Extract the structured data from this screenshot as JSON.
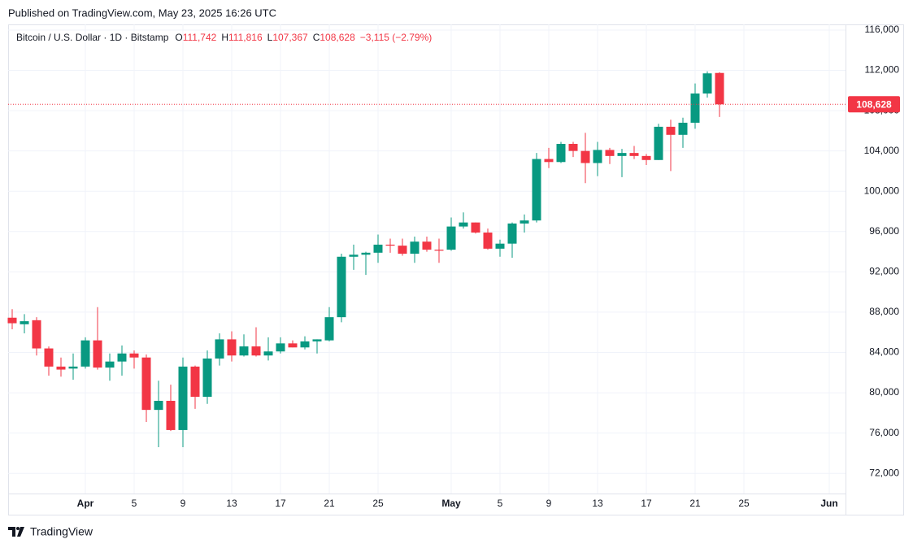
{
  "published": "Published on TradingView.com, May 23, 2025 16:26 UTC",
  "brand": "TradingView",
  "chart_data": {
    "type": "candlestick",
    "title": "Bitcoin / U.S. Dollar · 1D · Bitstamp",
    "ohlc": [
      {
        "key": "O",
        "value": "111,742"
      },
      {
        "key": "H",
        "value": "111,816"
      },
      {
        "key": "L",
        "value": "107,367"
      },
      {
        "key": "C",
        "value": "108,628"
      }
    ],
    "change": "−3,115 (−2.79%)",
    "x": [
      "2025-03-26",
      "2025-03-27",
      "2025-03-28",
      "2025-03-29",
      "2025-03-30",
      "2025-03-31",
      "2025-04-01",
      "2025-04-02",
      "2025-04-03",
      "2025-04-04",
      "2025-04-05",
      "2025-04-06",
      "2025-04-07",
      "2025-04-08",
      "2025-04-09",
      "2025-04-10",
      "2025-04-11",
      "2025-04-12",
      "2025-04-13",
      "2025-04-14",
      "2025-04-15",
      "2025-04-16",
      "2025-04-17",
      "2025-04-18",
      "2025-04-19",
      "2025-04-20",
      "2025-04-21",
      "2025-04-22",
      "2025-04-23",
      "2025-04-24",
      "2025-04-25",
      "2025-04-26",
      "2025-04-27",
      "2025-04-28",
      "2025-04-29",
      "2025-04-30",
      "2025-05-01",
      "2025-05-02",
      "2025-05-03",
      "2025-05-04",
      "2025-05-05",
      "2025-05-06",
      "2025-05-07",
      "2025-05-08",
      "2025-05-09",
      "2025-05-10",
      "2025-05-11",
      "2025-05-12",
      "2025-05-13",
      "2025-05-14",
      "2025-05-15",
      "2025-05-16",
      "2025-05-17",
      "2025-05-18",
      "2025-05-19",
      "2025-05-20",
      "2025-05-21",
      "2025-05-22",
      "2025-05-23"
    ],
    "open": [
      87450,
      86800,
      87200,
      84400,
      82600,
      82400,
      82600,
      85200,
      82500,
      83100,
      83900,
      83500,
      78300,
      79200,
      76300,
      82600,
      79600,
      83400,
      85300,
      83700,
      84600,
      83700,
      84100,
      84900,
      84500,
      85100,
      85200,
      87500,
      93500,
      93700,
      93900,
      94700,
      94600,
      93800,
      95000,
      94200,
      94200,
      96500,
      96900,
      95900,
      94300,
      94800,
      96800,
      97100,
      103200,
      102900,
      104700,
      104000,
      102800,
      104100,
      103500,
      103800,
      103500,
      103100,
      106400,
      105600,
      106800,
      109700,
      111742
    ],
    "high": [
      88300,
      87800,
      87500,
      84600,
      83500,
      83900,
      85500,
      88500,
      83900,
      84700,
      84200,
      83800,
      81200,
      80800,
      83500,
      82700,
      84200,
      85900,
      86100,
      85800,
      86500,
      85500,
      85500,
      85200,
      85600,
      85300,
      88500,
      93800,
      94700,
      94000,
      95700,
      95300,
      95300,
      95500,
      95500,
      95300,
      97400,
      97900,
      96900,
      96300,
      95200,
      96900,
      97700,
      103800,
      104300,
      104900,
      104900,
      105800,
      104900,
      104300,
      104200,
      104500,
      103700,
      106700,
      107100,
      107300,
      110700,
      111900,
      111816
    ],
    "low": [
      86300,
      85900,
      83700,
      81700,
      81600,
      81300,
      82400,
      82300,
      81200,
      81700,
      82400,
      77100,
      74600,
      76200,
      74600,
      78400,
      78900,
      82700,
      83100,
      83600,
      83600,
      83200,
      83900,
      84500,
      84300,
      83900,
      85100,
      87000,
      92200,
      91700,
      92900,
      93900,
      93600,
      92900,
      94000,
      92900,
      94100,
      96300,
      95800,
      94200,
      93500,
      93400,
      95900,
      96900,
      102300,
      102800,
      103400,
      100800,
      101500,
      102700,
      101400,
      103200,
      102600,
      103100,
      102000,
      104300,
      106200,
      109300,
      107367
    ],
    "close": [
      86900,
      87100,
      84400,
      82600,
      82300,
      82600,
      85200,
      82500,
      83100,
      83900,
      83500,
      78300,
      79200,
      76300,
      82600,
      79600,
      83400,
      85300,
      83700,
      84600,
      83700,
      84100,
      84900,
      84500,
      85100,
      85300,
      87500,
      93500,
      93700,
      93900,
      94700,
      94600,
      93800,
      95000,
      94200,
      94100,
      96500,
      96900,
      95900,
      94300,
      94800,
      96800,
      97100,
      103200,
      102900,
      104700,
      104000,
      102800,
      104100,
      103500,
      103800,
      103500,
      103100,
      106400,
      105600,
      106800,
      109700,
      111700,
      108628
    ],
    "up_color": "#089981",
    "down_color": "#f23645",
    "last_price": {
      "value": 108628,
      "label": "108,628"
    },
    "xlim": [
      "2025-03-26",
      "2025-06-01"
    ],
    "xticks": [
      {
        "value": "2025-04-01",
        "label": "Apr"
      },
      {
        "value": "2025-04-05",
        "label": "5"
      },
      {
        "value": "2025-04-09",
        "label": "9"
      },
      {
        "value": "2025-04-13",
        "label": "13"
      },
      {
        "value": "2025-04-17",
        "label": "17"
      },
      {
        "value": "2025-04-21",
        "label": "21"
      },
      {
        "value": "2025-04-25",
        "label": "25"
      },
      {
        "value": "2025-05-01",
        "label": "May"
      },
      {
        "value": "2025-05-05",
        "label": "5"
      },
      {
        "value": "2025-05-09",
        "label": "9"
      },
      {
        "value": "2025-05-13",
        "label": "13"
      },
      {
        "value": "2025-05-17",
        "label": "17"
      },
      {
        "value": "2025-05-21",
        "label": "21"
      },
      {
        "value": "2025-05-25",
        "label": "25"
      },
      {
        "value": "2025-06-01",
        "label": "Jun"
      }
    ],
    "ylim": [
      70000,
      116560
    ],
    "yticks": [
      {
        "value": 72000,
        "label": "72,000"
      },
      {
        "value": 76000,
        "label": "76,000"
      },
      {
        "value": 80000,
        "label": "80,000"
      },
      {
        "value": 84000,
        "label": "84,000"
      },
      {
        "value": 88000,
        "label": "88,000"
      },
      {
        "value": 92000,
        "label": "92,000"
      },
      {
        "value": 96000,
        "label": "96,000"
      },
      {
        "value": 100000,
        "label": "100,000"
      },
      {
        "value": 104000,
        "label": "104,000"
      },
      {
        "value": 108000,
        "label": "108,000"
      },
      {
        "value": 112000,
        "label": "112,000"
      },
      {
        "value": 116000,
        "label": "116,000"
      }
    ],
    "grid": true
  }
}
